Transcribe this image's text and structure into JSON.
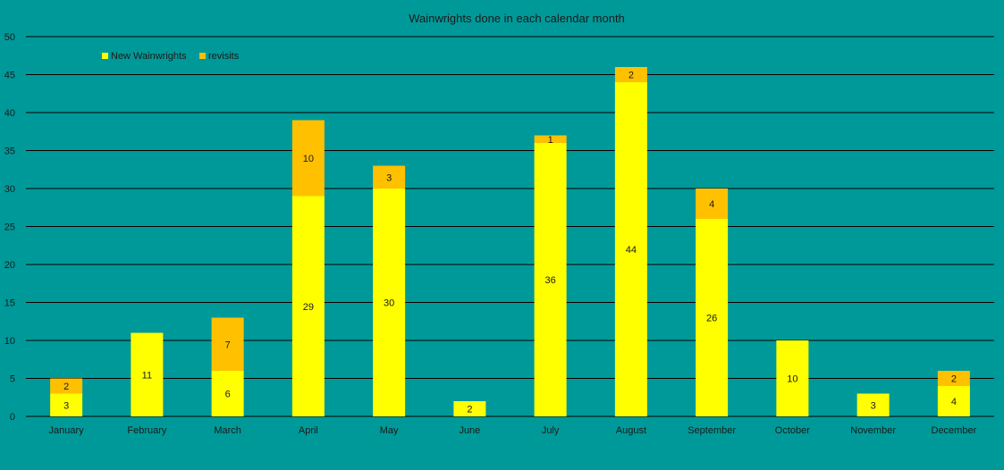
{
  "chart_data": {
    "type": "bar",
    "stacked": true,
    "title": "Wainwrights done in each calendar month",
    "categories": [
      "January",
      "February",
      "March",
      "April",
      "May",
      "June",
      "July",
      "August",
      "September",
      "October",
      "November",
      "December"
    ],
    "series": [
      {
        "name": "New Wainwrights",
        "color": "#ffff00",
        "values": [
          3,
          11,
          6,
          29,
          30,
          2,
          36,
          44,
          26,
          10,
          3,
          4
        ]
      },
      {
        "name": "revisits",
        "color": "#ffc000",
        "values": [
          2,
          0,
          7,
          10,
          3,
          0,
          1,
          2,
          4,
          0,
          0,
          2
        ]
      }
    ],
    "ylim": [
      0,
      50
    ],
    "ystep": 5,
    "grid": true,
    "legend_position": "top-left",
    "colors": {
      "background": "#009999",
      "gridline": "#000000"
    }
  }
}
